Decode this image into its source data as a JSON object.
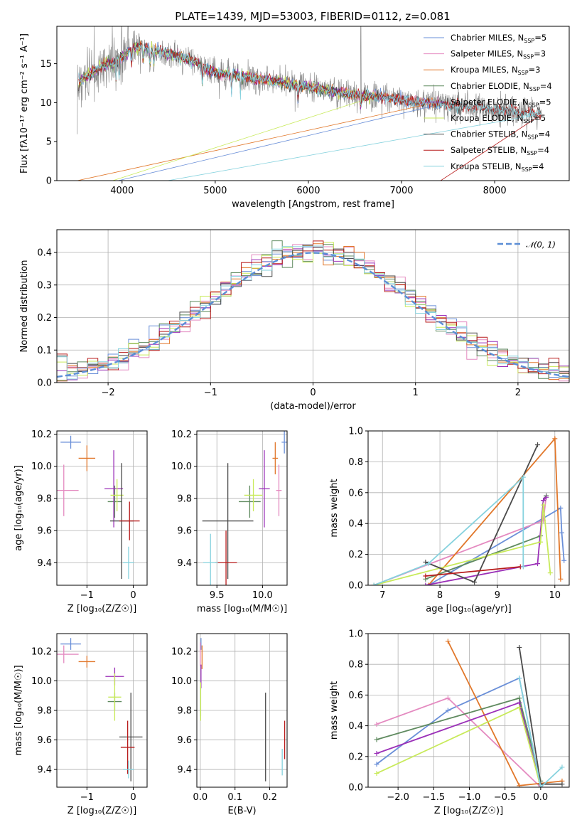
{
  "figure": {
    "title": "PLATE=1439, MJD=53003, FIBERID=0112, z=0.081"
  },
  "colors": {
    "Chabrier MILES": "#6a8fd8",
    "Salpeter MILES": "#e48ac0",
    "Kroupa MILES": "#e1772a",
    "Chabrier ELODIE": "#5f8a5f",
    "Salpeter ELODIE": "#9b30b8",
    "Kroupa ELODIE": "#c8ea5a",
    "Chabrier STELIB": "#4a4a4a",
    "Salpeter STELIB": "#b81c1c",
    "Kroupa STELIB": "#86d2de",
    "gaussian": "#5b8ed6",
    "data": "#808080"
  },
  "chart_data": [
    {
      "id": "spectrum",
      "type": "line",
      "title": "PLATE=1439, MJD=53003, FIBERID=0112, z=0.081",
      "xlabel": "wavelength [Angstrom, rest frame]",
      "ylabel": "Flux [fλ10⁻¹⁷ erg cm⁻² s⁻¹ A⁻¹]",
      "xlim": [
        3300,
        8800
      ],
      "ylim": [
        0,
        19.8
      ],
      "xticks": [
        4000,
        5000,
        6000,
        7000,
        8000
      ],
      "yticks": [
        0,
        5,
        10,
        15
      ],
      "legend_position": "top-right",
      "legend": [
        {
          "label": "Chabrier MILES, N",
          "sub": "SSP",
          "tail": "=5",
          "color": "#6a8fd8"
        },
        {
          "label": "Salpeter MILES, N",
          "sub": "SSP",
          "tail": "=3",
          "color": "#e48ac0"
        },
        {
          "label": "Kroupa MILES, N",
          "sub": "SSP",
          "tail": "=3",
          "color": "#e1772a"
        },
        {
          "label": "Chabrier ELODIE, N",
          "sub": "SSP",
          "tail": "=4",
          "color": "#5f8a5f"
        },
        {
          "label": "Salpeter ELODIE, N",
          "sub": "SSP",
          "tail": "=5",
          "color": "#9b30b8"
        },
        {
          "label": "Kroupa ELODIE, N",
          "sub": "SSP",
          "tail": "=5",
          "color": "#c8ea5a"
        },
        {
          "label": "Chabrier STELIB, N",
          "sub": "SSP",
          "tail": "=4",
          "color": "#4a4a4a"
        },
        {
          "label": "Salpeter STELIB, N",
          "sub": "SSP",
          "tail": "=4",
          "color": "#b81c1c"
        },
        {
          "label": "Kroupa STELIB, N",
          "sub": "SSP",
          "tail": "=4",
          "color": "#86d2de"
        }
      ],
      "continuum": [
        [
          3520,
          12.5
        ],
        [
          3600,
          13.2
        ],
        [
          3700,
          14.0
        ],
        [
          3800,
          14.8
        ],
        [
          3900,
          15.0
        ],
        [
          4000,
          15.8
        ],
        [
          4100,
          17.0
        ],
        [
          4200,
          17.3
        ],
        [
          4300,
          16.8
        ],
        [
          4400,
          16.6
        ],
        [
          4500,
          16.2
        ],
        [
          4600,
          16.0
        ],
        [
          4700,
          15.6
        ],
        [
          4800,
          15.2
        ],
        [
          4900,
          14.3
        ],
        [
          5000,
          13.8
        ],
        [
          5200,
          13.6
        ],
        [
          5400,
          13.2
        ],
        [
          5600,
          12.8
        ],
        [
          5800,
          12.4
        ],
        [
          6000,
          12.0
        ],
        [
          6200,
          11.6
        ],
        [
          6400,
          11.2
        ],
        [
          6600,
          10.9
        ],
        [
          6800,
          10.7
        ],
        [
          7000,
          10.4
        ],
        [
          7200,
          10.1
        ],
        [
          7400,
          9.9
        ],
        [
          7600,
          9.6
        ],
        [
          7800,
          9.3
        ],
        [
          8000,
          9.1
        ],
        [
          8200,
          8.9
        ],
        [
          8400,
          8.6
        ],
        [
          8500,
          8.5
        ]
      ]
    },
    {
      "id": "residuals",
      "type": "line",
      "xlabel": "(data-model)/error",
      "ylabel": "Normed distribution",
      "xlim": [
        -2.5,
        2.5
      ],
      "ylim": [
        0,
        0.47
      ],
      "xticks": [
        -2,
        -1,
        0,
        1,
        2
      ],
      "yticks": [
        0.0,
        0.1,
        0.2,
        0.3,
        0.4
      ],
      "legend_position": "top-right",
      "gaussian_label": "𝒩(0, 1)",
      "bin_width": 0.1
    },
    {
      "id": "age-vs-Z",
      "type": "scatter",
      "xlabel": "Z [log₁₀(Z/Z☉)]",
      "ylabel": "age  [log₁₀(age/yr)]",
      "xlim": [
        -1.65,
        0.3
      ],
      "ylim": [
        9.26,
        10.22
      ],
      "xticks": [
        -1,
        0
      ],
      "yticks": [
        9.4,
        9.6,
        9.8,
        10.0,
        10.2
      ],
      "points": [
        {
          "name": "Chabrier MILES",
          "x": -1.35,
          "xerr": 0.22,
          "y": 10.15,
          "yerr": 0.04
        },
        {
          "name": "Salpeter MILES",
          "x": -1.5,
          "xerr": 0.32,
          "y": 9.85,
          "yerr": 0.16
        },
        {
          "name": "Kroupa MILES",
          "x": -1.0,
          "xerr": 0.18,
          "y": 10.05,
          "yerr": 0.08
        },
        {
          "name": "Chabrier ELODIE",
          "x": -0.4,
          "xerr": 0.15,
          "y": 9.78,
          "yerr": 0.1
        },
        {
          "name": "Salpeter ELODIE",
          "x": -0.42,
          "xerr": 0.2,
          "y": 9.86,
          "yerr": 0.24
        },
        {
          "name": "Kroupa ELODIE",
          "x": -0.35,
          "xerr": 0.14,
          "y": 9.82,
          "yerr": 0.1
        },
        {
          "name": "Chabrier STELIB",
          "x": -0.25,
          "xerr": 0.25,
          "y": 9.66,
          "yerr": 0.36
        },
        {
          "name": "Salpeter STELIB",
          "x": -0.08,
          "xerr": 0.22,
          "y": 9.66,
          "yerr": 0.12
        },
        {
          "name": "Kroupa STELIB",
          "x": -0.1,
          "xerr": 0.12,
          "y": 9.4,
          "yerr": 0.1
        }
      ]
    },
    {
      "id": "age-vs-mass",
      "type": "scatter",
      "xlabel": "mass [log₁₀(M/M☉)]",
      "ylabel": "",
      "xlim": [
        9.28,
        10.27
      ],
      "ylim": [
        9.26,
        10.22
      ],
      "xticks": [
        9.5,
        10.0
      ],
      "yticks": [
        9.4,
        9.6,
        9.8,
        10.0,
        10.2
      ],
      "points": [
        {
          "name": "Chabrier MILES",
          "x": 10.24,
          "xerr": 0.03,
          "y": 10.15,
          "yerr": 0.07
        },
        {
          "name": "Salpeter MILES",
          "x": 10.18,
          "xerr": 0.03,
          "y": 9.85,
          "yerr": 0.16
        },
        {
          "name": "Kroupa MILES",
          "x": 10.14,
          "xerr": 0.03,
          "y": 10.05,
          "yerr": 0.1
        },
        {
          "name": "Chabrier ELODIE",
          "x": 9.86,
          "xerr": 0.12,
          "y": 9.78,
          "yerr": 0.1
        },
        {
          "name": "Salpeter ELODIE",
          "x": 10.02,
          "xerr": 0.06,
          "y": 9.86,
          "yerr": 0.24
        },
        {
          "name": "Kroupa ELODIE",
          "x": 9.9,
          "xerr": 0.1,
          "y": 9.82,
          "yerr": 0.1
        },
        {
          "name": "Chabrier STELIB",
          "x": 9.62,
          "xerr": 0.28,
          "y": 9.66,
          "yerr": 0.36
        },
        {
          "name": "Salpeter STELIB",
          "x": 9.6,
          "xerr": 0.12,
          "y": 9.4,
          "yerr": 0.2
        },
        {
          "name": "Kroupa STELIB",
          "x": 9.43,
          "xerr": 0.08,
          "y": 9.4,
          "yerr": 0.18
        }
      ]
    },
    {
      "id": "massweight-vs-age",
      "type": "line",
      "xlabel": "age  [log₁₀(age/yr)]",
      "ylabel": "mass weight",
      "xlim": [
        6.75,
        10.25
      ],
      "ylim": [
        0,
        1
      ],
      "xticks": [
        7,
        8,
        9,
        10
      ],
      "yticks": [
        0.0,
        0.2,
        0.4,
        0.6,
        0.8,
        1.0
      ],
      "series": [
        {
          "name": "Chabrier MILES",
          "x": [
            7.8,
            10.1,
            10.12,
            10.16
          ],
          "y": [
            0.0,
            0.5,
            0.34,
            0.16
          ]
        },
        {
          "name": "Salpeter MILES",
          "x": [
            6.85,
            9.8,
            9.85
          ],
          "y": [
            0.0,
            0.42,
            0.58
          ]
        },
        {
          "name": "Kroupa MILES",
          "x": [
            7.8,
            10.0,
            10.1
          ],
          "y": [
            0.0,
            0.95,
            0.04
          ]
        },
        {
          "name": "Chabrier ELODIE",
          "x": [
            7.75,
            9.75,
            9.8,
            9.85
          ],
          "y": [
            0.04,
            0.32,
            0.55,
            0.58
          ]
        },
        {
          "name": "Salpeter ELODIE",
          "x": [
            7.75,
            9.7,
            9.8,
            9.85
          ],
          "y": [
            0.0,
            0.14,
            0.55,
            0.57
          ]
        },
        {
          "name": "Kroupa ELODIE",
          "x": [
            6.85,
            9.75,
            9.8,
            9.92
          ],
          "y": [
            0.0,
            0.28,
            0.52,
            0.08
          ]
        },
        {
          "name": "Chabrier STELIB",
          "x": [
            7.75,
            8.6,
            9.7
          ],
          "y": [
            0.15,
            0.02,
            0.91
          ]
        },
        {
          "name": "Salpeter STELIB",
          "x": [
            7.75,
            9.4
          ],
          "y": [
            0.06,
            0.12
          ]
        },
        {
          "name": "Kroupa STELIB",
          "x": [
            6.85,
            7.8,
            9.45,
            9.45
          ],
          "y": [
            0.0,
            0.14,
            0.7,
            0.12
          ]
        }
      ]
    },
    {
      "id": "mass-vs-Z",
      "type": "scatter",
      "xlabel": "Z [log₁₀(Z/Z☉)]",
      "ylabel": "mass [log₁₀(M/M☉)]",
      "xlim": [
        -1.65,
        0.3
      ],
      "ylim": [
        9.28,
        10.32
      ],
      "xticks": [
        -1,
        0
      ],
      "yticks": [
        9.4,
        9.6,
        9.8,
        10.0,
        10.2
      ],
      "points": [
        {
          "name": "Chabrier MILES",
          "x": -1.35,
          "xerr": 0.22,
          "y": 10.25,
          "yerr": 0.04
        },
        {
          "name": "Salpeter MILES",
          "x": -1.5,
          "xerr": 0.32,
          "y": 10.18,
          "yerr": 0.06
        },
        {
          "name": "Kroupa MILES",
          "x": -1.0,
          "xerr": 0.18,
          "y": 10.13,
          "yerr": 0.04
        },
        {
          "name": "Chabrier ELODIE",
          "x": -0.4,
          "xerr": 0.15,
          "y": 9.86,
          "yerr": 0.06
        },
        {
          "name": "Salpeter ELODIE",
          "x": -0.4,
          "xerr": 0.2,
          "y": 10.03,
          "yerr": 0.06
        },
        {
          "name": "Kroupa ELODIE",
          "x": -0.4,
          "xerr": 0.14,
          "y": 9.89,
          "yerr": 0.16
        },
        {
          "name": "Chabrier STELIB",
          "x": -0.05,
          "xerr": 0.25,
          "y": 9.62,
          "yerr": 0.3
        },
        {
          "name": "Salpeter STELIB",
          "x": -0.12,
          "xerr": 0.15,
          "y": 9.55,
          "yerr": 0.18
        },
        {
          "name": "Kroupa STELIB",
          "x": -0.1,
          "xerr": 0.12,
          "y": 9.4,
          "yerr": 0.06
        }
      ]
    },
    {
      "id": "mass-vs-EBV",
      "type": "scatter",
      "xlabel": "E(B-V)",
      "ylabel": "",
      "xlim": [
        -0.01,
        0.25
      ],
      "ylim": [
        9.28,
        10.32
      ],
      "xticks": [
        0.0,
        0.1,
        0.2
      ],
      "yticks": [
        9.4,
        9.6,
        9.8,
        10.0,
        10.2
      ],
      "points": [
        {
          "name": "Chabrier MILES",
          "x": 0.002,
          "xerr": 0.0,
          "y": 10.25,
          "yerr": 0.04
        },
        {
          "name": "Salpeter MILES",
          "x": 0.0,
          "xerr": 0.0,
          "y": 10.18,
          "yerr": 0.08
        },
        {
          "name": "Kroupa MILES",
          "x": 0.005,
          "xerr": 0.0,
          "y": 10.16,
          "yerr": 0.08
        },
        {
          "name": "Chabrier ELODIE",
          "x": 0.001,
          "xerr": 0.0,
          "y": 9.86,
          "yerr": 0.1
        },
        {
          "name": "Salpeter ELODIE",
          "x": 0.002,
          "xerr": 0.0,
          "y": 10.03,
          "yerr": 0.08
        },
        {
          "name": "Kroupa ELODIE",
          "x": 0.001,
          "xerr": 0.0,
          "y": 9.86,
          "yerr": 0.13
        },
        {
          "name": "Chabrier STELIB",
          "x": 0.188,
          "xerr": 0.0,
          "y": 9.62,
          "yerr": 0.3
        },
        {
          "name": "Salpeter STELIB",
          "x": 0.243,
          "xerr": 0.0,
          "y": 9.6,
          "yerr": 0.13
        },
        {
          "name": "Kroupa STELIB",
          "x": 0.236,
          "xerr": 0.0,
          "y": 9.45,
          "yerr": 0.09
        }
      ]
    },
    {
      "id": "massweight-vs-Z",
      "type": "line",
      "xlabel": "Z [log₁₀(Z/Z☉)]",
      "ylabel": "mass weight",
      "xlim": [
        -2.42,
        0.4
      ],
      "ylim": [
        0,
        1
      ],
      "xticks": [
        -2.0,
        -1.5,
        -1.0,
        -0.5,
        0.0
      ],
      "yticks": [
        0.0,
        0.2,
        0.4,
        0.6,
        0.8,
        1.0
      ],
      "series": [
        {
          "name": "Chabrier MILES",
          "x": [
            -2.3,
            -1.3,
            -0.3,
            0.0
          ],
          "y": [
            0.15,
            0.5,
            0.71,
            0.0
          ]
        },
        {
          "name": "Salpeter MILES",
          "x": [
            -2.3,
            -1.3,
            0.0
          ],
          "y": [
            0.41,
            0.58,
            0.0
          ]
        },
        {
          "name": "Kroupa MILES",
          "x": [
            -1.3,
            -0.3,
            0.3
          ],
          "y": [
            0.95,
            0.01,
            0.04
          ]
        },
        {
          "name": "Chabrier ELODIE",
          "x": [
            -2.3,
            -0.3,
            0.0
          ],
          "y": [
            0.31,
            0.58,
            0.04
          ]
        },
        {
          "name": "Salpeter ELODIE",
          "x": [
            -2.3,
            -0.3,
            0.0
          ],
          "y": [
            0.22,
            0.55,
            0.0
          ]
        },
        {
          "name": "Kroupa ELODIE",
          "x": [
            -2.3,
            -0.3,
            0.0
          ],
          "y": [
            0.09,
            0.52,
            0.0
          ]
        },
        {
          "name": "Chabrier STELIB",
          "x": [
            -0.3,
            0.0,
            0.3
          ],
          "y": [
            0.91,
            0.02,
            0.02
          ]
        },
        {
          "name": "Salpeter STELIB",
          "x": [
            0.0
          ],
          "y": [
            0.0
          ]
        },
        {
          "name": "Kroupa STELIB",
          "x": [
            -0.3,
            0.0,
            0.3
          ],
          "y": [
            0.71,
            0.0,
            0.13
          ]
        }
      ]
    }
  ]
}
